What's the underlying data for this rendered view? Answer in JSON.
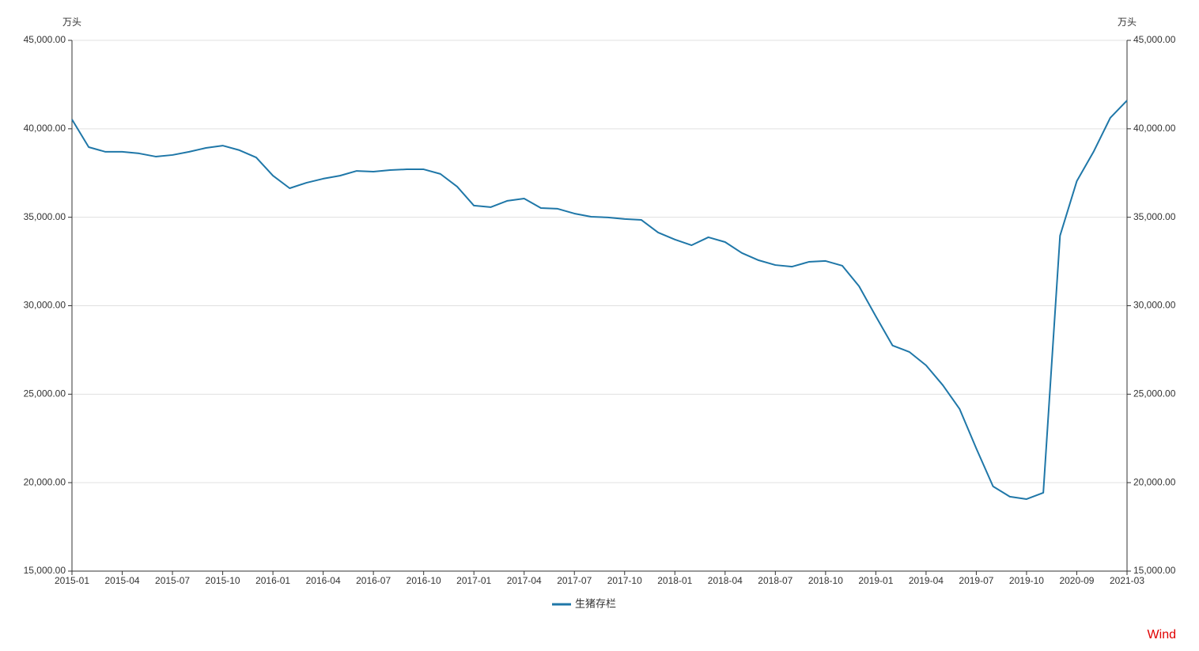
{
  "chart_data": {
    "type": "line",
    "y_unit": "万头",
    "y2_unit": "万头",
    "categories": [
      "2015-01",
      null,
      null,
      "2015-04",
      null,
      null,
      "2015-07",
      null,
      null,
      "2015-10",
      null,
      null,
      "2016-01",
      null,
      null,
      "2016-04",
      null,
      null,
      "2016-07",
      null,
      null,
      "2016-10",
      null,
      null,
      "2017-01",
      null,
      null,
      "2017-04",
      null,
      null,
      "2017-07",
      null,
      null,
      "2017-10",
      null,
      null,
      "2018-01",
      null,
      null,
      "2018-04",
      null,
      null,
      "2018-07",
      null,
      null,
      "2018-10",
      null,
      null,
      "2019-01",
      null,
      null,
      "2019-04",
      null,
      null,
      "2019-07",
      null,
      null,
      "2019-10",
      null,
      null,
      "2020-09",
      null,
      null,
      "2021-03"
    ],
    "series": [
      {
        "name": "生猪存栏",
        "color": "#1f77a8",
        "values": [
          40530,
          38965,
          38700,
          38700,
          38610,
          38430,
          38520,
          38700,
          38920,
          39050,
          38790,
          38380,
          37350,
          36640,
          36950,
          37180,
          37350,
          37620,
          37580,
          37670,
          37710,
          37710,
          37450,
          36730,
          35660,
          35570,
          35930,
          36060,
          35520,
          35480,
          35210,
          35030,
          34990,
          34900,
          34850,
          34140,
          33740,
          33420,
          33870,
          33600,
          32980,
          32570,
          32300,
          32210,
          32480,
          32530,
          32260,
          31100,
          29400,
          27750,
          27390,
          26630,
          25510,
          24170,
          21930,
          19790,
          19210,
          19070,
          19430,
          33960,
          37040,
          38700,
          40620,
          41600
        ]
      }
    ],
    "ylim": [
      15000,
      45000
    ],
    "yticks": [
      {
        "value": 15000,
        "label": "15,000.00"
      },
      {
        "value": 20000,
        "label": "20,000.00"
      },
      {
        "value": 25000,
        "label": "25,000.00"
      },
      {
        "value": 30000,
        "label": "30,000.00"
      },
      {
        "value": 35000,
        "label": "35,000.00"
      },
      {
        "value": 40000,
        "label": "40,000.00"
      },
      {
        "value": 45000,
        "label": "45,000.00"
      }
    ],
    "y2lim": [
      15000,
      45000
    ],
    "y2ticks": [
      {
        "value": 15000,
        "label": "15,000.00"
      },
      {
        "value": 20000,
        "label": "20,000.00"
      },
      {
        "value": 25000,
        "label": "25,000.00"
      },
      {
        "value": 30000,
        "label": "30,000.00"
      },
      {
        "value": 35000,
        "label": "35,000.00"
      },
      {
        "value": 40000,
        "label": "40,000.00"
      },
      {
        "value": 45000,
        "label": "45,000.00"
      }
    ],
    "grid": true,
    "legend": "bottom",
    "source": "Wind"
  }
}
